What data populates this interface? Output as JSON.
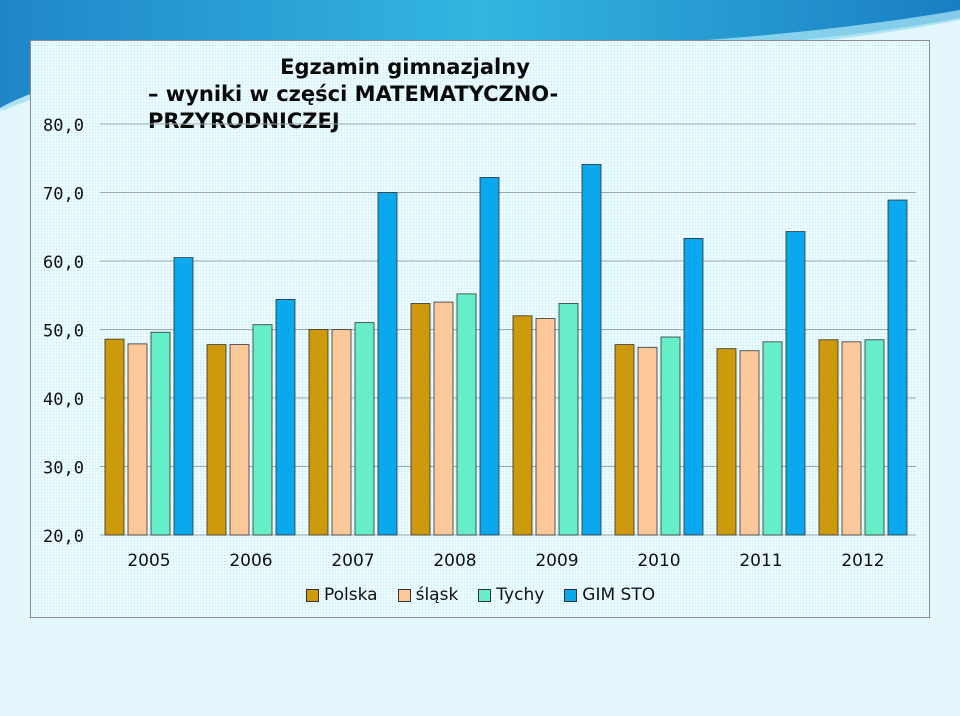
{
  "slide": {
    "title_line1": "Egzamin gimnazjalny",
    "title_line2": "– wyniki w części MATEMATYCZNO-PRZYRODNICZEJ"
  },
  "chart_data": {
    "type": "bar",
    "categories": [
      "2005",
      "2006",
      "2007",
      "2008",
      "2009",
      "2010",
      "2011",
      "2012"
    ],
    "series": [
      {
        "name": "Polska",
        "color": "#cc9a0b",
        "values": [
          48.6,
          47.8,
          50.0,
          53.8,
          52.0,
          47.8,
          47.2,
          48.5
        ]
      },
      {
        "name": "śląsk",
        "color": "#fdc89a",
        "values": [
          47.9,
          47.8,
          50.0,
          54.0,
          51.6,
          47.4,
          46.9,
          48.2
        ]
      },
      {
        "name": "Tychy",
        "color": "#66eec8",
        "values": [
          49.6,
          50.7,
          51.0,
          55.2,
          53.8,
          48.9,
          48.2,
          48.5
        ]
      },
      {
        "name": "GIM STO",
        "color": "#0aa8ec",
        "values": [
          60.5,
          54.4,
          70.0,
          72.2,
          74.1,
          63.3,
          64.3,
          68.9
        ]
      }
    ],
    "y_ticks": [
      "20,0",
      "30,0",
      "40,0",
      "50,0",
      "60,0",
      "70,0",
      "80,0"
    ],
    "ylim": [
      20,
      80
    ],
    "grid": true,
    "legend_position": "bottom",
    "title": "Egzamin gimnazjalny – wyniki w części MATEMATYCZNO-PRZYRODNICZEJ",
    "xlabel": "",
    "ylabel": ""
  }
}
